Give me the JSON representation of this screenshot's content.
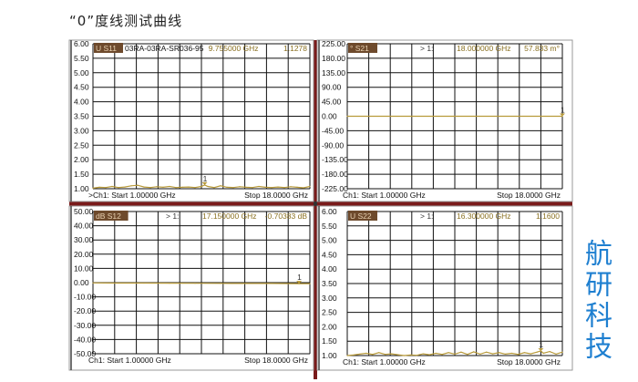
{
  "page": {
    "title": "“0”度线测试曲线",
    "watermark": "航研科技"
  },
  "colors": {
    "trace": "#b89a3a",
    "badge": "#6e4a2c",
    "badge_text": "#e8d0b0",
    "grid": "#111111",
    "marker_text": "#8a7020",
    "separator": "#7a1a1a"
  },
  "chart_data": [
    {
      "type": "line",
      "trace_label": "U S11",
      "label_extra": "03RA-03RA-SR036-95",
      "marker_prefix": "",
      "marker_freq": "9.755000 GHz",
      "marker_value": "1.1278",
      "footer_start": ">Ch1: Start  1.00000 GHz",
      "footer_stop": "Stop  18.0000 GHz",
      "ylim": [
        1.0,
        6.0
      ],
      "xlim": [
        1,
        18
      ],
      "yticks": [
        "6.00",
        "5.50",
        "5.00",
        "4.50",
        "4.00",
        "3.50",
        "3.00",
        "2.50",
        "2.00",
        "1.50",
        "1.00"
      ],
      "x": [
        1,
        1.5,
        2,
        2.5,
        3,
        3.5,
        4,
        4.5,
        5,
        5.5,
        6,
        6.5,
        7,
        7.5,
        8,
        8.5,
        9,
        9.5,
        9.755,
        10,
        10.5,
        11,
        11.5,
        12,
        12.5,
        13,
        13.5,
        14,
        14.5,
        15,
        15.5,
        16,
        16.5,
        17,
        17.5,
        18
      ],
      "y": [
        1.02,
        1.05,
        1.04,
        1.08,
        1.04,
        1.06,
        1.1,
        1.12,
        1.06,
        1.04,
        1.07,
        1.05,
        1.08,
        1.04,
        1.05,
        1.06,
        1.04,
        1.08,
        1.13,
        1.08,
        1.04,
        1.1,
        1.05,
        1.04,
        1.07,
        1.05,
        1.04,
        1.08,
        1.05,
        1.04,
        1.06,
        1.04,
        1.07,
        1.05,
        1.03,
        1.08
      ],
      "marker_x": 9.755,
      "marker_y": 1.1278
    },
    {
      "type": "line",
      "trace_label": "° S21",
      "label_extra": "",
      "marker_prefix": "> 1:",
      "marker_freq": "18.000000 GHz",
      "marker_value": "57.833 m°",
      "footer_start": "Ch1: Start  1.00000 GHz",
      "footer_stop": "Stop  18.0000 GHz",
      "ylim": [
        -225,
        225
      ],
      "xlim": [
        1,
        18
      ],
      "yticks": [
        "225.00",
        "180.00",
        "135.00",
        "90.00",
        "45.00",
        "0.00",
        "-45.00",
        "-90.00",
        "-135.00",
        "-180.00",
        "-225.00"
      ],
      "x": [
        1,
        18
      ],
      "y": [
        0,
        0.058
      ],
      "marker_x": 18,
      "marker_y": 0.058
    },
    {
      "type": "line",
      "trace_label": "dB S12",
      "label_extra": "",
      "marker_prefix": "> 1:",
      "marker_freq": "17.150000 GHz",
      "marker_value": "-0.70383 dB",
      "footer_start": "Ch1: Start  1.00000 GHz",
      "footer_stop": "Stop  18.0000 GHz",
      "ylim": [
        -50,
        50
      ],
      "xlim": [
        1,
        18
      ],
      "yticks": [
        "50.00",
        "40.00",
        "30.00",
        "20.00",
        "10.00",
        "0.00",
        "-10.00",
        "-20.00",
        "-30.00",
        "-40.00",
        "-50.00"
      ],
      "x": [
        1,
        3,
        5,
        7,
        9,
        11,
        13,
        15,
        17.15,
        18
      ],
      "y": [
        -0.2,
        -0.3,
        -0.35,
        -0.4,
        -0.45,
        -0.5,
        -0.55,
        -0.6,
        -0.7,
        -0.72
      ],
      "marker_x": 17.15,
      "marker_y": -0.70383
    },
    {
      "type": "line",
      "trace_label": "U S22",
      "label_extra": "",
      "marker_prefix": "> 1:",
      "marker_freq": "16.300000 GHz",
      "marker_value": "1.1600",
      "footer_start": "Ch1: Start  1.00000 GHz",
      "footer_stop": "Stop  18.0000 GHz",
      "ylim": [
        1.0,
        6.0
      ],
      "xlim": [
        1,
        18
      ],
      "yticks": [
        "6.00",
        "5.50",
        "5.00",
        "4.50",
        "4.00",
        "3.50",
        "3.00",
        "2.50",
        "2.00",
        "1.50",
        "1.00"
      ],
      "x": [
        1,
        1.5,
        2,
        2.5,
        3,
        3.5,
        4,
        4.5,
        5,
        5.5,
        6,
        6.5,
        7,
        7.5,
        8,
        8.5,
        9,
        9.5,
        10,
        10.5,
        11,
        11.5,
        12,
        12.5,
        13,
        13.5,
        14,
        14.5,
        15,
        15.5,
        16,
        16.3,
        16.5,
        17,
        17.5,
        18
      ],
      "y": [
        1.0,
        1.02,
        1.05,
        1.08,
        1.04,
        1.1,
        1.04,
        1.06,
        1.03,
        1.0,
        1.02,
        1.01,
        1.06,
        1.03,
        1.08,
        1.04,
        1.1,
        1.05,
        1.12,
        1.04,
        1.13,
        1.05,
        1.12,
        1.06,
        1.1,
        1.05,
        1.08,
        1.04,
        1.1,
        1.06,
        1.12,
        1.16,
        1.08,
        1.14,
        1.05,
        1.12
      ],
      "marker_x": 16.3,
      "marker_y": 1.16
    }
  ]
}
